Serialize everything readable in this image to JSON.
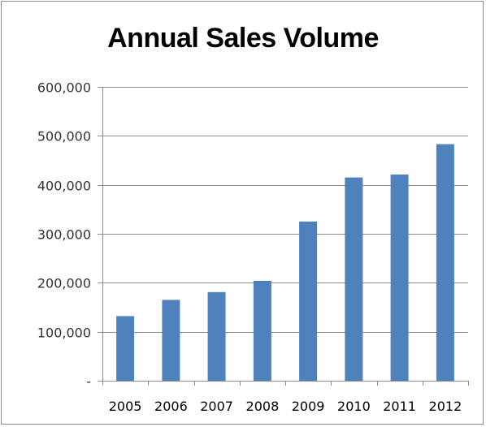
{
  "chart_data": {
    "type": "bar",
    "title": "Annual Sales Volume",
    "xlabel": "",
    "ylabel": "",
    "categories": [
      "2005",
      "2006",
      "2007",
      "2008",
      "2009",
      "2010",
      "2011",
      "2012"
    ],
    "values": [
      132000,
      165000,
      181000,
      204000,
      325000,
      415000,
      421000,
      483000
    ],
    "ylim": [
      0,
      600000
    ],
    "yticks": [
      0,
      100000,
      200000,
      300000,
      400000,
      500000,
      600000
    ],
    "ytick_labels": [
      "-",
      "100,000",
      "200,000",
      "300,000",
      "400,000",
      "500,000",
      "600,000"
    ],
    "grid": true,
    "legend": "none",
    "bar_color": "#4f81bd",
    "grid_color": "#8c8c8c"
  }
}
